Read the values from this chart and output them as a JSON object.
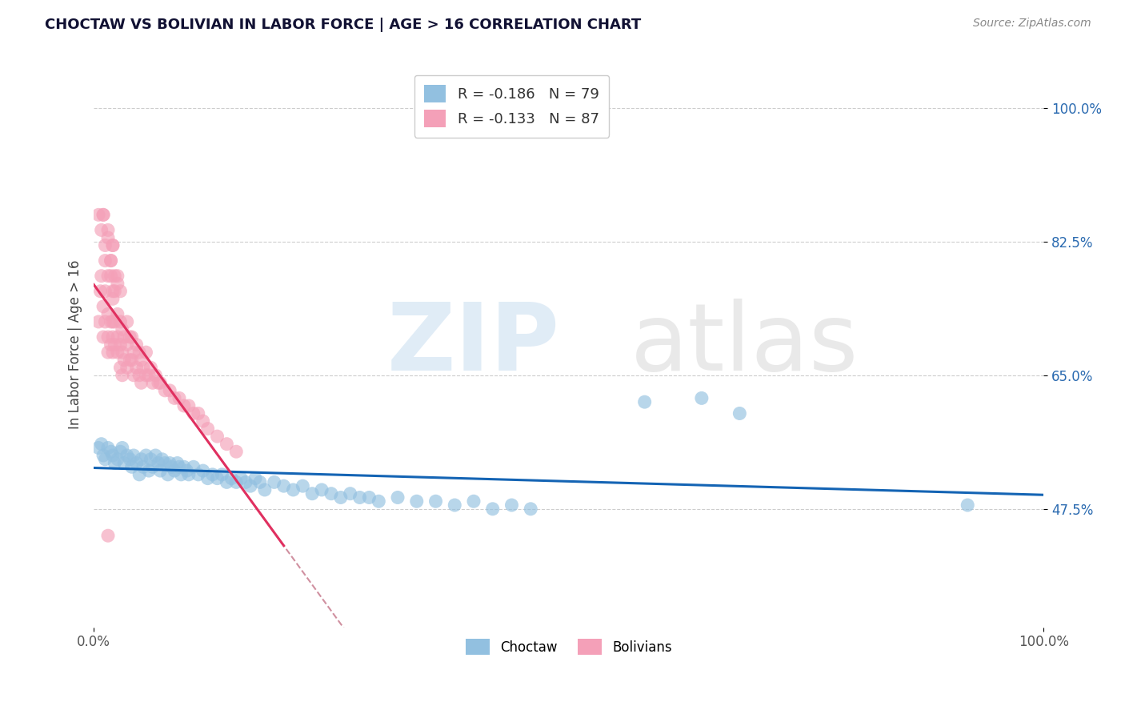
{
  "title": "CHOCTAW VS BOLIVIAN IN LABOR FORCE | AGE > 16 CORRELATION CHART",
  "source_text": "Source: ZipAtlas.com",
  "ylabel": "In Labor Force | Age > 16",
  "xlim": [
    0.0,
    1.0
  ],
  "ylim": [
    0.32,
    1.06
  ],
  "xtick_labels": [
    "0.0%",
    "100.0%"
  ],
  "ytick_values": [
    0.475,
    0.65,
    0.825,
    1.0
  ],
  "ytick_labels": [
    "47.5%",
    "65.0%",
    "82.5%",
    "100.0%"
  ],
  "legend_r_blue": "R = -0.186",
  "legend_n_blue": "N = 79",
  "legend_r_pink": "R = -0.133",
  "legend_n_pink": "N = 87",
  "choctaw_label": "Choctaw",
  "bolivian_label": "Bolivians",
  "blue_scatter_color": "#92c0e0",
  "pink_scatter_color": "#f4a0b8",
  "blue_line_color": "#1464b4",
  "pink_line_color": "#e03060",
  "dashed_line_color": "#d090a0",
  "background_color": "#ffffff",
  "choctaw_x": [
    0.005,
    0.008,
    0.01,
    0.012,
    0.015,
    0.018,
    0.02,
    0.022,
    0.025,
    0.028,
    0.03,
    0.032,
    0.035,
    0.038,
    0.04,
    0.042,
    0.045,
    0.048,
    0.05,
    0.052,
    0.055,
    0.058,
    0.06,
    0.062,
    0.065,
    0.068,
    0.07,
    0.072,
    0.075,
    0.078,
    0.08,
    0.082,
    0.085,
    0.088,
    0.09,
    0.092,
    0.095,
    0.098,
    0.1,
    0.105,
    0.11,
    0.115,
    0.12,
    0.125,
    0.13,
    0.135,
    0.14,
    0.145,
    0.15,
    0.155,
    0.16,
    0.165,
    0.17,
    0.175,
    0.18,
    0.19,
    0.2,
    0.21,
    0.22,
    0.23,
    0.24,
    0.25,
    0.26,
    0.27,
    0.28,
    0.29,
    0.3,
    0.32,
    0.34,
    0.36,
    0.38,
    0.4,
    0.42,
    0.44,
    0.46,
    0.58,
    0.64,
    0.68,
    0.92
  ],
  "choctaw_y": [
    0.555,
    0.56,
    0.545,
    0.54,
    0.555,
    0.55,
    0.545,
    0.535,
    0.54,
    0.55,
    0.555,
    0.535,
    0.545,
    0.54,
    0.53,
    0.545,
    0.535,
    0.52,
    0.54,
    0.53,
    0.545,
    0.525,
    0.54,
    0.53,
    0.545,
    0.535,
    0.525,
    0.54,
    0.535,
    0.52,
    0.535,
    0.53,
    0.525,
    0.535,
    0.53,
    0.52,
    0.53,
    0.525,
    0.52,
    0.53,
    0.52,
    0.525,
    0.515,
    0.52,
    0.515,
    0.52,
    0.51,
    0.515,
    0.51,
    0.515,
    0.51,
    0.505,
    0.515,
    0.51,
    0.5,
    0.51,
    0.505,
    0.5,
    0.505,
    0.495,
    0.5,
    0.495,
    0.49,
    0.495,
    0.49,
    0.49,
    0.485,
    0.49,
    0.485,
    0.485,
    0.48,
    0.485,
    0.475,
    0.48,
    0.475,
    0.615,
    0.62,
    0.6,
    0.48
  ],
  "bolivian_x": [
    0.005,
    0.007,
    0.008,
    0.01,
    0.01,
    0.012,
    0.012,
    0.015,
    0.015,
    0.015,
    0.018,
    0.018,
    0.02,
    0.02,
    0.02,
    0.02,
    0.022,
    0.022,
    0.025,
    0.025,
    0.025,
    0.028,
    0.028,
    0.028,
    0.03,
    0.03,
    0.03,
    0.032,
    0.032,
    0.035,
    0.035,
    0.035,
    0.038,
    0.038,
    0.04,
    0.04,
    0.042,
    0.042,
    0.045,
    0.045,
    0.048,
    0.048,
    0.05,
    0.05,
    0.052,
    0.055,
    0.055,
    0.058,
    0.06,
    0.062,
    0.065,
    0.068,
    0.07,
    0.075,
    0.08,
    0.085,
    0.09,
    0.095,
    0.1,
    0.105,
    0.11,
    0.115,
    0.12,
    0.13,
    0.14,
    0.15,
    0.015,
    0.018,
    0.02,
    0.022,
    0.025,
    0.028,
    0.005,
    0.008,
    0.01,
    0.012,
    0.015,
    0.018,
    0.02,
    0.015,
    0.02,
    0.025,
    0.012,
    0.01,
    0.018,
    0.022,
    0.015
  ],
  "bolivian_y": [
    0.72,
    0.76,
    0.78,
    0.74,
    0.7,
    0.76,
    0.72,
    0.73,
    0.7,
    0.68,
    0.72,
    0.69,
    0.75,
    0.72,
    0.7,
    0.68,
    0.72,
    0.69,
    0.73,
    0.7,
    0.68,
    0.72,
    0.69,
    0.66,
    0.71,
    0.68,
    0.65,
    0.7,
    0.67,
    0.72,
    0.69,
    0.66,
    0.7,
    0.67,
    0.7,
    0.67,
    0.68,
    0.65,
    0.69,
    0.66,
    0.68,
    0.65,
    0.67,
    0.64,
    0.66,
    0.68,
    0.65,
    0.65,
    0.66,
    0.64,
    0.65,
    0.64,
    0.64,
    0.63,
    0.63,
    0.62,
    0.62,
    0.61,
    0.61,
    0.6,
    0.6,
    0.59,
    0.58,
    0.57,
    0.56,
    0.55,
    0.83,
    0.8,
    0.82,
    0.78,
    0.78,
    0.76,
    0.86,
    0.84,
    0.86,
    0.82,
    0.78,
    0.8,
    0.76,
    0.84,
    0.82,
    0.77,
    0.8,
    0.86,
    0.78,
    0.76,
    0.44
  ]
}
